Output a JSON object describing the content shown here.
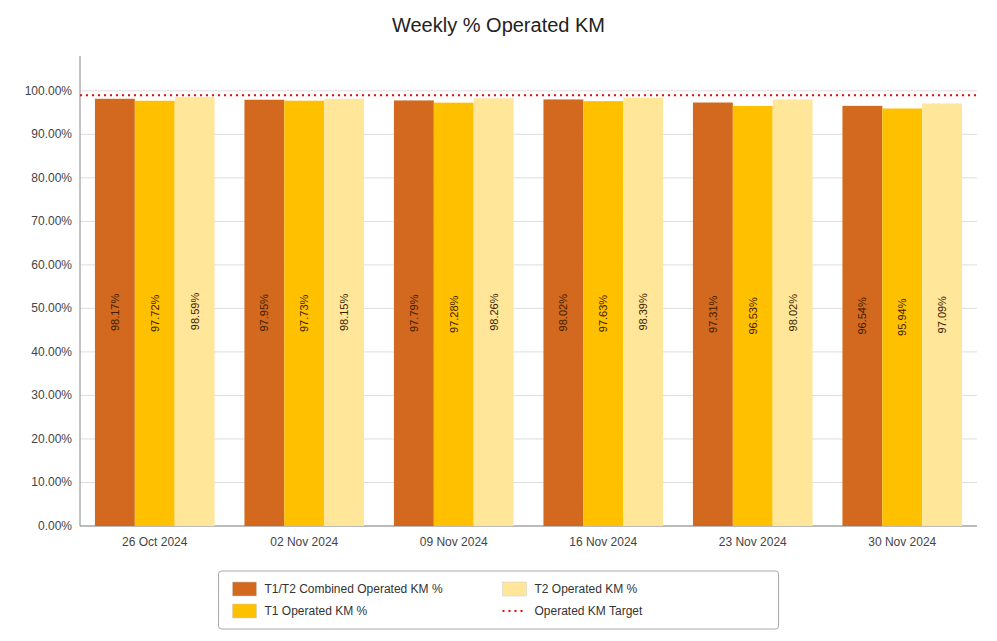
{
  "chart_data": {
    "type": "bar",
    "title": "Weekly % Operated KM",
    "categories": [
      "26 Oct 2024",
      "02 Nov 2024",
      "09 Nov 2024",
      "16 Nov 2024",
      "23 Nov 2024",
      "30 Nov 2024"
    ],
    "series": [
      {
        "name": "T1/T2 Combined Operated KM %",
        "color": "#D2691E",
        "values": [
          98.17,
          97.95,
          97.79,
          98.02,
          97.31,
          96.54
        ],
        "value_labels": [
          "98.17%",
          "97.95%",
          "97.79%",
          "98.02%",
          "97.31%",
          "96.54%"
        ]
      },
      {
        "name": "T1 Operated KM %",
        "color": "#FFC000",
        "values": [
          97.72,
          97.73,
          97.28,
          97.63,
          96.53,
          95.94
        ],
        "value_labels": [
          "97.72%",
          "97.73%",
          "97.28%",
          "97.63%",
          "96.53%",
          "95.94%"
        ]
      },
      {
        "name": "T2 Operated KM %",
        "color": "#FFE699",
        "values": [
          98.59,
          98.15,
          98.26,
          98.39,
          98.02,
          97.09
        ],
        "value_labels": [
          "98.59%",
          "98.15%",
          "98.26%",
          "98.39%",
          "98.02%",
          "97.09%"
        ]
      }
    ],
    "reference_lines": [
      {
        "name": "Operated KM Target",
        "value": 99.0,
        "color": "#FF0000",
        "line_style": "dotted"
      }
    ],
    "ylim": [
      0,
      108
    ],
    "yticks": [
      {
        "value": 0,
        "label": "0.00%"
      },
      {
        "value": 10,
        "label": "10.00%"
      },
      {
        "value": 20,
        "label": "20.00%"
      },
      {
        "value": 30,
        "label": "30.00%"
      },
      {
        "value": 40,
        "label": "40.00%"
      },
      {
        "value": 50,
        "label": "50.00%"
      },
      {
        "value": 60,
        "label": "60.00%"
      },
      {
        "value": 70,
        "label": "70.00%"
      },
      {
        "value": 80,
        "label": "80.00%"
      },
      {
        "value": 90,
        "label": "90.00%"
      },
      {
        "value": 100,
        "label": "100.00%"
      }
    ],
    "grid": true,
    "data_labels": true,
    "legend": "bottom"
  }
}
